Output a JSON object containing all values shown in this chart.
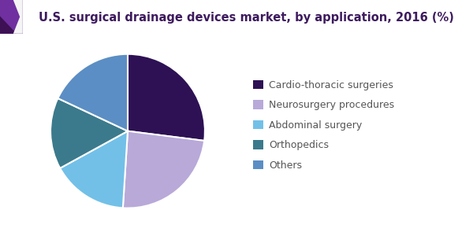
{
  "title": "U.S. surgical drainage devices market, by application, 2016 (%)",
  "title_color": "#3d1a5e",
  "title_fontsize": 10.5,
  "slices": [
    {
      "label": "Cardio-thoracic surgeries",
      "value": 27,
      "color": "#2d1154"
    },
    {
      "label": "Neurosurgery procedures",
      "value": 24,
      "color": "#b8a9d9"
    },
    {
      "label": "Abdominal surgery",
      "value": 16,
      "color": "#72c0e8"
    },
    {
      "label": "Orthopedics",
      "value": 15,
      "color": "#3b7a8c"
    },
    {
      "label": "Others",
      "value": 18,
      "color": "#5b8ec4"
    }
  ],
  "startangle": 90,
  "background_color": "#ffffff",
  "wedge_edge_color": "#ffffff",
  "wedge_linewidth": 1.5,
  "legend_fontsize": 9,
  "legend_text_color": "#555555",
  "header_bg": "#f5f5f5",
  "header_accent_color": "#7030a0",
  "header_dark_color": "#3d1154",
  "header_line_color": "#7030a0"
}
